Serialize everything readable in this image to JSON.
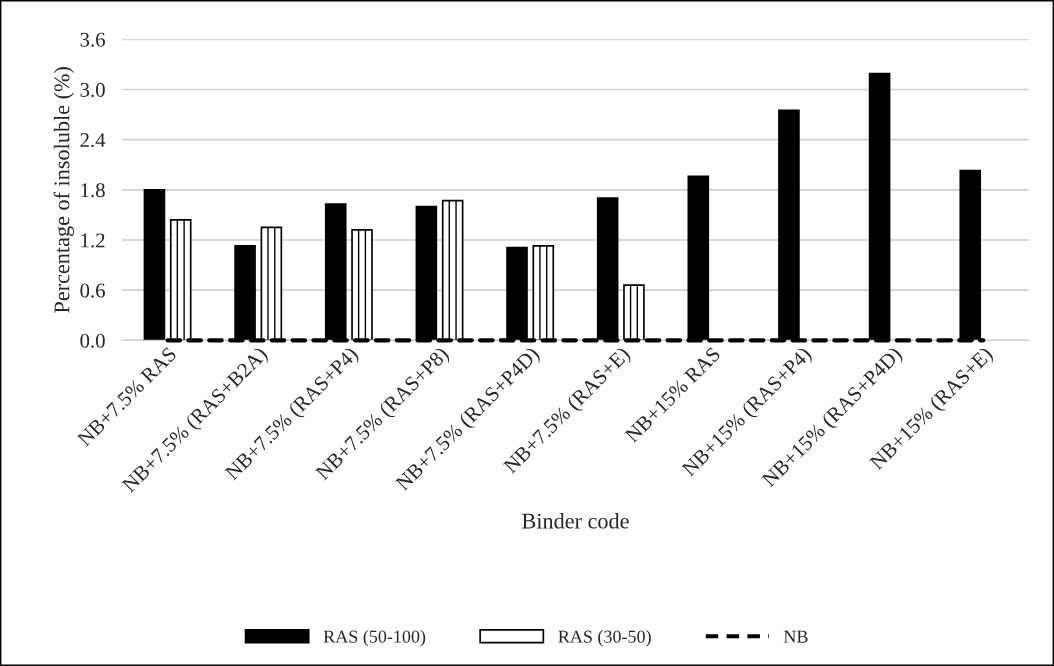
{
  "chart_data": {
    "type": "bar",
    "xlabel": "Binder code",
    "ylabel": "Percentage of insoluble (%)",
    "categories": [
      "NB+7.5% RAS",
      "NB+7.5% (RAS+B2A)",
      "NB+7.5% (RAS+P4)",
      "NB+7.5% (RAS+P8)",
      "NB+7.5% (RAS+P4D)",
      "NB+7.5% (RAS+E)",
      "NB+15% RAS",
      "NB+15% (RAS+P4)",
      "NB+15% (RAS+P4D)",
      "NB+15% (RAS+E)"
    ],
    "series": [
      {
        "name": "RAS (50-100)",
        "color": "#000000",
        "values": [
          1.8,
          1.13,
          1.63,
          1.6,
          1.11,
          1.7,
          1.96,
          2.75,
          3.19,
          2.03
        ]
      },
      {
        "name": "RAS (30-50)",
        "color": "#ffffff",
        "values": [
          1.44,
          1.35,
          1.32,
          1.67,
          1.13,
          0.66,
          null,
          null,
          null,
          null
        ]
      },
      {
        "name": "NB",
        "type": "line",
        "color": "#000000",
        "line_style": "dashed",
        "values": [
          0,
          0,
          0,
          0,
          0,
          0,
          0,
          0,
          0,
          0
        ]
      }
    ],
    "ylim": [
      0,
      3.6
    ],
    "yticks": [
      {
        "value": 0,
        "label": "0.0"
      },
      {
        "value": 0.6,
        "label": "0.6"
      },
      {
        "value": 1.2,
        "label": "1.2"
      },
      {
        "value": 1.8,
        "label": "1.8"
      },
      {
        "value": 2.4,
        "label": "2.4"
      },
      {
        "value": 3.0,
        "label": "3.0"
      },
      {
        "value": 3.6,
        "label": "3.6"
      }
    ],
    "grid": "y",
    "legend": "bottom"
  }
}
